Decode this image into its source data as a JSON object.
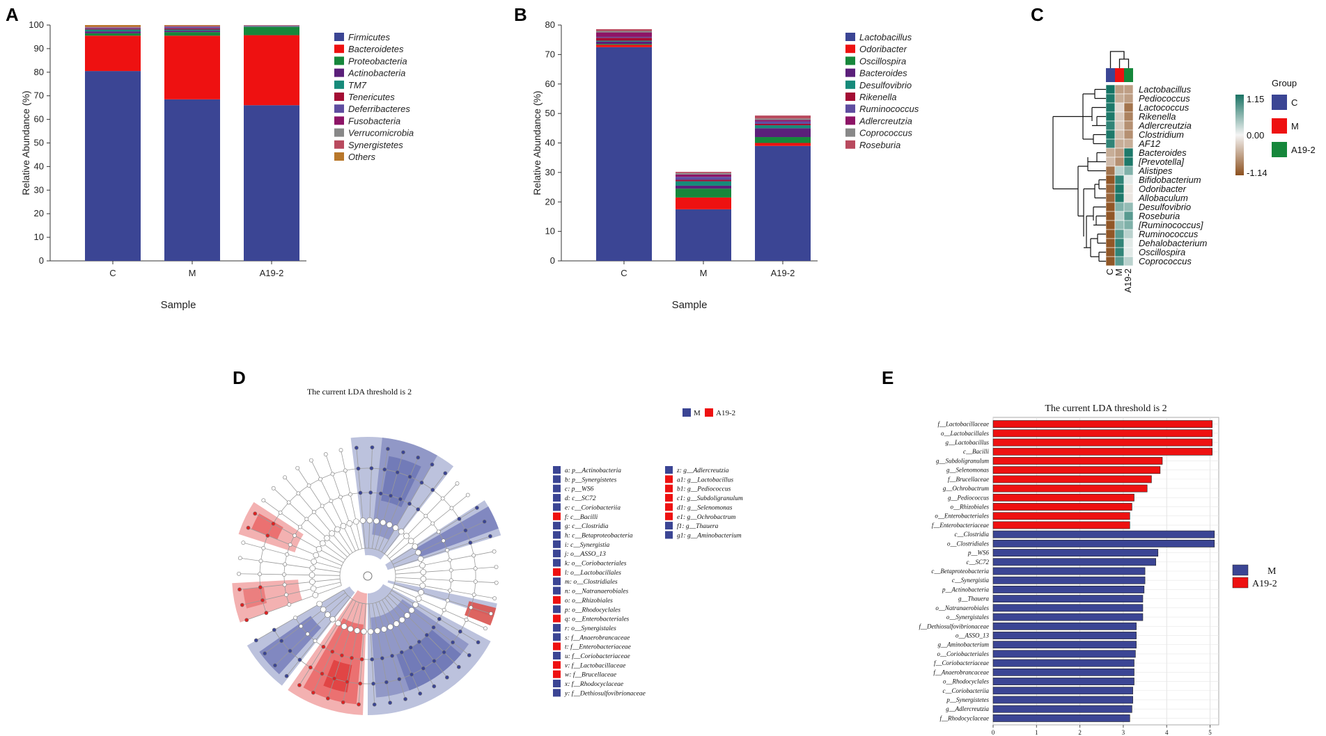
{
  "colors": {
    "phylum": [
      "#3b4594",
      "#ee1111",
      "#16873b",
      "#5b1f7a",
      "#168a7a",
      "#a30d34",
      "#5f4da0",
      "#8d1466",
      "#888888",
      "#b94a5e",
      "#b8772a"
    ],
    "genus": [
      "#3b4594",
      "#ee1111",
      "#16873b",
      "#5b1f7a",
      "#168a7a",
      "#a30d34",
      "#5f4da0",
      "#8d1466",
      "#888888",
      "#b94a5e"
    ],
    "groupC": "#3b4594",
    "groupM": "#ee1111",
    "groupA": "#16873b",
    "ldaM": "#3b4594",
    "ldaA": "#ee1111"
  },
  "panels": {
    "a": "A",
    "b": "B",
    "c": "C",
    "d": "D",
    "e": "E"
  },
  "chart_data": [
    {
      "id": "A",
      "type": "bar",
      "stacked": true,
      "categories": [
        "C",
        "M",
        "A19-2"
      ],
      "xlabel": "Sample",
      "ylabel": "Relative Abundance (%)",
      "ylim": [
        0,
        100
      ],
      "yticks": [
        "0",
        "10",
        "20",
        "30",
        "40",
        "50",
        "60",
        "70",
        "80",
        "90",
        "100"
      ],
      "series": [
        {
          "name": "Firmicutes",
          "values": [
            80.5,
            68.5,
            66.0
          ]
        },
        {
          "name": "Bacteroidetes",
          "values": [
            15.0,
            27.0,
            29.7
          ]
        },
        {
          "name": "Proteobacteria",
          "values": [
            1.0,
            1.5,
            3.5
          ]
        },
        {
          "name": "Actinobacteria",
          "values": [
            0.8,
            0.6,
            0.1
          ]
        },
        {
          "name": "TM7",
          "values": [
            0.8,
            0.5,
            0.2
          ]
        },
        {
          "name": "Tenericutes",
          "values": [
            0.3,
            0.5,
            0.1
          ]
        },
        {
          "name": "Deferribacteres",
          "values": [
            0.3,
            0.5,
            0.1
          ]
        },
        {
          "name": "Fusobacteria",
          "values": [
            0.2,
            0.2,
            0.1
          ]
        },
        {
          "name": "Verrucomicrobia",
          "values": [
            0.2,
            0.2,
            0.1
          ]
        },
        {
          "name": "Synergistetes",
          "values": [
            0.2,
            0.2,
            0.1
          ]
        },
        {
          "name": "Others",
          "values": [
            0.7,
            0.3,
            0.0
          ]
        }
      ]
    },
    {
      "id": "B",
      "type": "bar",
      "stacked": true,
      "categories": [
        "C",
        "M",
        "A19-2"
      ],
      "xlabel": "Sample",
      "ylabel": "Relative Abundance (%)",
      "ylim": [
        0,
        80
      ],
      "yticks": [
        "0",
        "10",
        "20",
        "30",
        "40",
        "50",
        "60",
        "70",
        "80"
      ],
      "series": [
        {
          "name": "Lactobacillus",
          "values": [
            72.5,
            17.5,
            39.0
          ]
        },
        {
          "name": "Odoribacter",
          "values": [
            0.8,
            4.0,
            1.0
          ]
        },
        {
          "name": "Oscillospira",
          "values": [
            0.3,
            3.0,
            2.0
          ]
        },
        {
          "name": "Bacteroides",
          "values": [
            0.8,
            1.0,
            3.0
          ]
        },
        {
          "name": "Desulfovibrio",
          "values": [
            0.3,
            1.5,
            1.0
          ]
        },
        {
          "name": "Rikenella",
          "values": [
            1.0,
            0.5,
            0.5
          ]
        },
        {
          "name": "Ruminococcus",
          "values": [
            0.3,
            1.0,
            0.8
          ]
        },
        {
          "name": "Adlercreutzia",
          "values": [
            1.5,
            0.8,
            0.5
          ]
        },
        {
          "name": "Coprococcus",
          "values": [
            0.5,
            0.5,
            0.5
          ]
        },
        {
          "name": "Roseburia",
          "values": [
            0.6,
            0.4,
            1.0
          ]
        }
      ]
    },
    {
      "id": "C",
      "type": "heatmap",
      "columns": [
        "C",
        "M",
        "A19-2"
      ],
      "rows": [
        "Lactobacillus",
        "Pediococcus",
        "Lactococcus",
        "Rikenella",
        "Adlercreutzia",
        "Clostridium",
        "AF12",
        "Bacteroides",
        "[Prevotella]",
        "Alistipes",
        "Bifidobacterium",
        "Odoribacter",
        "Allobaculum",
        "Desulfovibrio",
        "Roseburia",
        "[Ruminococcus]",
        "Ruminococcus",
        "Dehalobacterium",
        "Oscillospira",
        "Coprococcus"
      ],
      "values": [
        [
          1.15,
          -0.6,
          -0.6
        ],
        [
          1.1,
          -0.5,
          -0.6
        ],
        [
          1.1,
          -0.2,
          -0.9
        ],
        [
          1.1,
          -0.3,
          -0.8
        ],
        [
          1.0,
          -0.3,
          -0.7
        ],
        [
          1.1,
          -0.4,
          -0.7
        ],
        [
          1.0,
          -0.5,
          -0.5
        ],
        [
          -0.5,
          -0.6,
          1.1
        ],
        [
          -0.4,
          -0.7,
          1.1
        ],
        [
          -0.9,
          0.3,
          0.6
        ],
        [
          -1.1,
          1.0,
          0.1
        ],
        [
          -1.0,
          1.1,
          -0.1
        ],
        [
          -1.0,
          1.1,
          -0.1
        ],
        [
          -1.1,
          0.6,
          0.5
        ],
        [
          -1.1,
          0.3,
          0.8
        ],
        [
          -1.1,
          0.5,
          0.6
        ],
        [
          -1.1,
          0.8,
          0.3
        ],
        [
          -1.1,
          1.0,
          0.1
        ],
        [
          -1.1,
          1.0,
          0.1
        ],
        [
          -1.1,
          0.8,
          0.3
        ]
      ],
      "colorbar": {
        "max": "1.15",
        "mid": "0.00",
        "min": "-1.14"
      },
      "group_legend_title": "Group",
      "groups": [
        "C",
        "M",
        "A19-2"
      ]
    },
    {
      "id": "D",
      "type": "cladogram",
      "title": "The current LDA threshold is 2",
      "legend": [
        "M",
        "A19-2"
      ],
      "key_col1": [
        {
          "t": "a: p__Actinobacteria",
          "g": "M"
        },
        {
          "t": "b: p__Synergistetes",
          "g": "M"
        },
        {
          "t": "c: p__WS6",
          "g": "M"
        },
        {
          "t": "d: c__SC72",
          "g": "M"
        },
        {
          "t": "e: c__Coriobacteriia",
          "g": "M"
        },
        {
          "t": "f: c__Bacilli",
          "g": "A19-2"
        },
        {
          "t": "g: c__Clostridia",
          "g": "M"
        },
        {
          "t": "h: c__Betaproteobacteria",
          "g": "M"
        },
        {
          "t": "i: c__Synergistia",
          "g": "M"
        },
        {
          "t": "j: o__ASSO_13",
          "g": "M"
        },
        {
          "t": "k: o__Coriobacteriales",
          "g": "M"
        },
        {
          "t": "l: o__Lactobacillales",
          "g": "A19-2"
        },
        {
          "t": "m: o__Clostridiales",
          "g": "M"
        },
        {
          "t": "n: o__Natranaerobiales",
          "g": "M"
        },
        {
          "t": "o: o__Rhizobiales",
          "g": "A19-2"
        },
        {
          "t": "p: o__Rhodocyclales",
          "g": "M"
        },
        {
          "t": "q: o__Enterobacteriales",
          "g": "A19-2"
        },
        {
          "t": "r: o__Synergistales",
          "g": "M"
        },
        {
          "t": "s: f__Anaerobrancaceae",
          "g": "M"
        },
        {
          "t": "t: f__Enterobacteriaceae",
          "g": "A19-2"
        },
        {
          "t": "u: f__Coriobacteriaceae",
          "g": "M"
        },
        {
          "t": "v: f__Lactobacillaceae",
          "g": "A19-2"
        },
        {
          "t": "w: f__Brucellaceae",
          "g": "A19-2"
        },
        {
          "t": "x: f__Rhodocyclaceae",
          "g": "M"
        },
        {
          "t": "y: f__Dethiosulfovibrionaceae",
          "g": "M"
        }
      ],
      "key_col2": [
        {
          "t": "z: g__Adlercreutzia",
          "g": "M"
        },
        {
          "t": "a1: g__Lactobacillus",
          "g": "A19-2"
        },
        {
          "t": "b1: g__Pediococcus",
          "g": "A19-2"
        },
        {
          "t": "c1: g__Subdoligranulum",
          "g": "A19-2"
        },
        {
          "t": "d1: g__Selenomonas",
          "g": "A19-2"
        },
        {
          "t": "e1: g__Ochrobactrum",
          "g": "A19-2"
        },
        {
          "t": "f1: g__Thauera",
          "g": "M"
        },
        {
          "t": "g1: g__Aminobacterium",
          "g": "M"
        }
      ]
    },
    {
      "id": "E",
      "type": "bar",
      "orientation": "horizontal",
      "title": "The current LDA threshold is 2",
      "xlim": [
        0,
        5.2
      ],
      "xticks": [
        "0",
        "1",
        "2",
        "3",
        "4",
        "5"
      ],
      "legend": [
        "M",
        "A19-2"
      ],
      "labels": [
        "f__Lactobacillaceae",
        "o__Lactobacillales",
        "g__Lactobacillus",
        "c__Bacilli",
        "g__Subdoligranulum",
        "g__Selenomonas",
        "f__Brucellaceae",
        "g__Ochrobactrum",
        "g__Pediococcus",
        "o__Rhizobiales",
        "o__Enterobacteriales",
        "f__Enterobacteriaceae",
        "c__Clostridia",
        "o__Clostridiales",
        "p__WS6",
        "c__SC72",
        "c__Betaproteobacteria",
        "c__Synergistia",
        "p__Actinobacteria",
        "g__Thauera",
        "o__Natranaerobiales",
        "o__Synergistales",
        "f__Dethiosulfovibrionaceae",
        "o__ASSO_13",
        "g__Aminobacterium",
        "o__Coriobacteriales",
        "f__Coriobacteriaceae",
        "f__Anaerobrancaceae",
        "o__Rhodocyclales",
        "c__Coriobacteriia",
        "p__Synergistetes",
        "g__Adlercreutzia",
        "f__Rhodocyclaceae"
      ],
      "values": [
        5.05,
        5.05,
        5.05,
        5.05,
        3.9,
        3.85,
        3.65,
        3.55,
        3.25,
        3.2,
        3.15,
        3.15,
        5.1,
        5.1,
        3.8,
        3.75,
        3.5,
        3.5,
        3.48,
        3.45,
        3.45,
        3.45,
        3.3,
        3.3,
        3.3,
        3.28,
        3.25,
        3.25,
        3.25,
        3.22,
        3.22,
        3.2,
        3.15
      ],
      "groups": [
        "A19-2",
        "A19-2",
        "A19-2",
        "A19-2",
        "A19-2",
        "A19-2",
        "A19-2",
        "A19-2",
        "A19-2",
        "A19-2",
        "A19-2",
        "A19-2",
        "M",
        "M",
        "M",
        "M",
        "M",
        "M",
        "M",
        "M",
        "M",
        "M",
        "M",
        "M",
        "M",
        "M",
        "M",
        "M",
        "M",
        "M",
        "M",
        "M",
        "M"
      ]
    }
  ]
}
